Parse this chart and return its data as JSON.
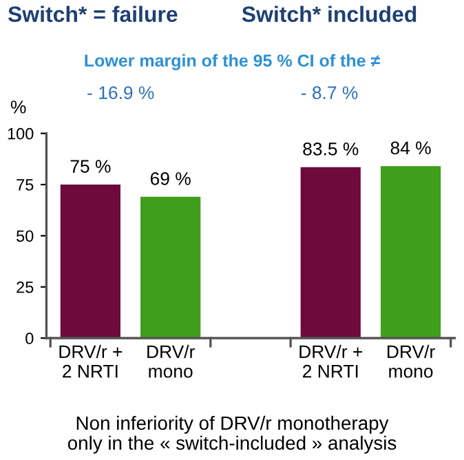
{
  "chart_data": {
    "type": "bar",
    "categories": [
      "DRV/r +\n2 NRTI",
      "DRV/r\nmono",
      null,
      "DRV/r +\n2 NRTI",
      "DRV/r\nmono"
    ],
    "values": [
      75,
      69,
      null,
      83.5,
      84
    ],
    "colors": [
      "#6e0a3c",
      "#3f9e1c",
      "#ffffff",
      "#6e0a3c",
      "#3f9e1c"
    ],
    "value_labels": [
      "75 %",
      "69 %",
      null,
      "83.5 %",
      "84 %"
    ],
    "ylabel": "%",
    "ylim": [
      0,
      100
    ],
    "yticks": [
      0,
      25,
      50,
      75,
      100
    ],
    "grid": false,
    "legend": false,
    "annotations": [
      "Switch* = failure",
      "Switch* included",
      "Lower margin of the 95 % CI of the ≠",
      "- 16.9 %",
      "- 8.7 %",
      "Non inferiority of DRV/r monotherapy\nonly in the « switch-included » analysis"
    ]
  }
}
